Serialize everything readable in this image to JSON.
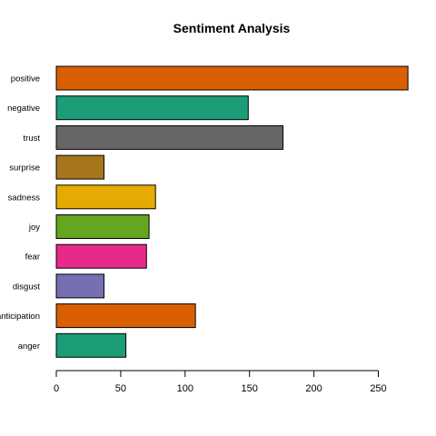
{
  "chart_data": {
    "type": "bar",
    "orientation": "horizontal",
    "title": "Sentiment Analysis",
    "xlabel": "",
    "ylabel": "",
    "categories": [
      "positive",
      "negative",
      "trust",
      "surprise",
      "sadness",
      "joy",
      "fear",
      "disgust",
      "anticipation",
      "anger"
    ],
    "values": [
      273,
      149,
      176,
      37,
      77,
      72,
      70,
      37,
      108,
      54
    ],
    "colors": [
      "#D95F02",
      "#1B9E77",
      "#666666",
      "#A6761D",
      "#E6AB02",
      "#66A61E",
      "#E7298A",
      "#7570B3",
      "#D95F02",
      "#1B9E77"
    ],
    "xlim": [
      0,
      273
    ],
    "xticks": [
      0,
      50,
      100,
      150,
      200,
      250
    ],
    "grid": false,
    "legend": "none"
  }
}
